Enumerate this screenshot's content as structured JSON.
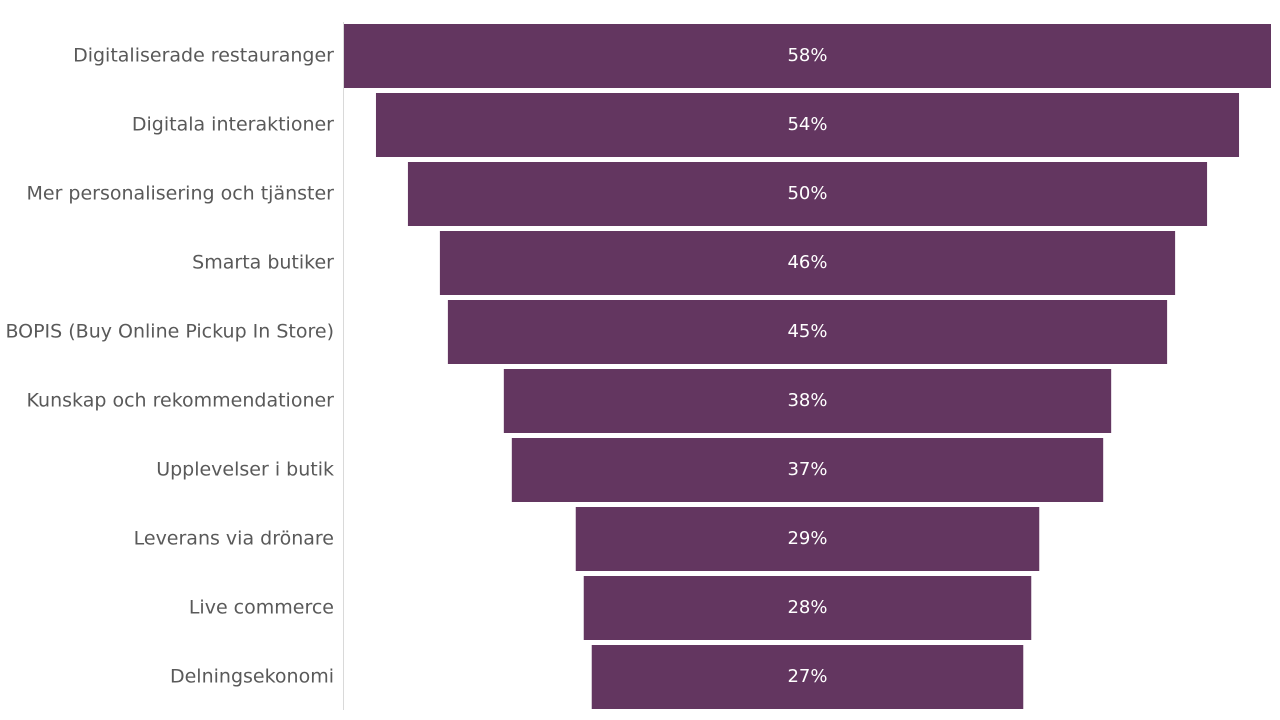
{
  "chart_data": {
    "type": "funnel",
    "categories": [
      "Digitaliserade restauranger",
      "Digitala interaktioner",
      "Mer personalisering och tjänster",
      "Smarta butiker",
      "BOPIS (Buy Online Pickup In Store)",
      "Kunskap och rekommendationer",
      "Upplevelser i butik",
      "Leverans via drönare",
      "Live commerce",
      "Delningsekonomi"
    ],
    "values": [
      58,
      54,
      50,
      46,
      45,
      38,
      37,
      29,
      28,
      27
    ],
    "value_labels": [
      "58%",
      "54%",
      "50%",
      "46%",
      "45%",
      "38%",
      "37%",
      "29%",
      "28%",
      "27%"
    ],
    "color": "#633660"
  }
}
